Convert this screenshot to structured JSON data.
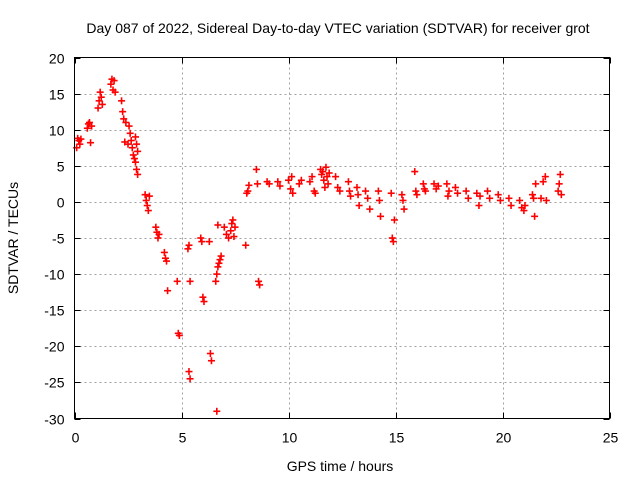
{
  "chart_data": {
    "type": "scatter",
    "title": "Day 087 of 2022, Sidereal Day-to-day VTEC variation (SDTVAR) for receiver grot",
    "xlabel": "GPS time / hours",
    "ylabel": "SDTVAR / TECUs",
    "xlim": [
      0,
      25
    ],
    "ylim": [
      -30,
      20
    ],
    "x_ticks": [
      0,
      5,
      10,
      15,
      20,
      25
    ],
    "y_ticks": [
      -30,
      -25,
      -20,
      -15,
      -10,
      -5,
      0,
      5,
      10,
      15,
      20
    ],
    "grid": true,
    "marker": "plus",
    "marker_color": "#ff0000",
    "series": [
      {
        "name": "SDTVAR",
        "points": [
          [
            0.1,
            7.5
          ],
          [
            0.15,
            8.8
          ],
          [
            0.2,
            8.5
          ],
          [
            0.25,
            8.0
          ],
          [
            0.3,
            8.7
          ],
          [
            0.6,
            10.2
          ],
          [
            0.65,
            10.8
          ],
          [
            0.7,
            11.0
          ],
          [
            0.75,
            8.2
          ],
          [
            0.8,
            10.5
          ],
          [
            1.1,
            13.0
          ],
          [
            1.15,
            14.0
          ],
          [
            1.2,
            15.2
          ],
          [
            1.25,
            14.5
          ],
          [
            1.3,
            13.5
          ],
          [
            1.7,
            16.3
          ],
          [
            1.75,
            17.0
          ],
          [
            1.8,
            15.5
          ],
          [
            1.85,
            16.8
          ],
          [
            1.9,
            15.2
          ],
          [
            2.2,
            14.0
          ],
          [
            2.25,
            12.5
          ],
          [
            2.3,
            11.5
          ],
          [
            2.35,
            8.3
          ],
          [
            2.4,
            11.0
          ],
          [
            2.5,
            8.0
          ],
          [
            2.55,
            10.5
          ],
          [
            2.6,
            9.5
          ],
          [
            2.65,
            8.5
          ],
          [
            2.7,
            7.5
          ],
          [
            2.75,
            6.5
          ],
          [
            2.8,
            6.0
          ],
          [
            2.85,
            5.5
          ],
          [
            2.9,
            4.5
          ],
          [
            2.95,
            3.8
          ],
          [
            2.85,
            9.0
          ],
          [
            2.9,
            8.0
          ],
          [
            2.95,
            7.0
          ],
          [
            3.3,
            1.0
          ],
          [
            3.35,
            0.2
          ],
          [
            3.4,
            -0.5
          ],
          [
            3.45,
            -1.2
          ],
          [
            3.5,
            0.8
          ],
          [
            3.8,
            -3.5
          ],
          [
            3.85,
            -4.2
          ],
          [
            3.9,
            -5.0
          ],
          [
            3.95,
            -4.5
          ],
          [
            4.2,
            -7.0
          ],
          [
            4.25,
            -7.8
          ],
          [
            4.3,
            -8.2
          ],
          [
            4.35,
            -12.3
          ],
          [
            4.8,
            -11.0
          ],
          [
            4.85,
            -18.2
          ],
          [
            4.9,
            -18.5
          ],
          [
            5.3,
            -6.5
          ],
          [
            5.35,
            -6.0
          ],
          [
            5.4,
            -11.0
          ],
          [
            5.35,
            -23.5
          ],
          [
            5.4,
            -24.5
          ],
          [
            5.9,
            -5.0
          ],
          [
            5.95,
            -5.5
          ],
          [
            6.0,
            -13.2
          ],
          [
            6.05,
            -13.8
          ],
          [
            6.3,
            -5.5
          ],
          [
            6.35,
            -21.0
          ],
          [
            6.4,
            -22.0
          ],
          [
            6.65,
            -29.0
          ],
          [
            6.7,
            -3.2
          ],
          [
            6.6,
            -11.0
          ],
          [
            6.65,
            -10.0
          ],
          [
            6.7,
            -9.0
          ],
          [
            6.75,
            -8.5
          ],
          [
            6.8,
            -8.0
          ],
          [
            6.85,
            -7.5
          ],
          [
            7.0,
            -3.5
          ],
          [
            7.1,
            -4.5
          ],
          [
            7.2,
            -5.0
          ],
          [
            7.3,
            -4.0
          ],
          [
            7.35,
            -3.0
          ],
          [
            7.4,
            -2.5
          ],
          [
            7.45,
            -4.8
          ],
          [
            7.5,
            -3.5
          ],
          [
            8.0,
            -6.0
          ],
          [
            8.05,
            1.2
          ],
          [
            8.1,
            1.5
          ],
          [
            8.15,
            2.3
          ],
          [
            8.5,
            4.5
          ],
          [
            8.55,
            2.5
          ],
          [
            8.6,
            -11.0
          ],
          [
            8.65,
            -11.5
          ],
          [
            9.0,
            2.8
          ],
          [
            9.1,
            2.5
          ],
          [
            9.5,
            2.8
          ],
          [
            9.6,
            2.2
          ],
          [
            10.0,
            3.0
          ],
          [
            10.1,
            1.8
          ],
          [
            10.2,
            1.2
          ],
          [
            10.15,
            3.5
          ],
          [
            10.5,
            2.5
          ],
          [
            10.6,
            3.0
          ],
          [
            11.0,
            2.8
          ],
          [
            11.1,
            3.5
          ],
          [
            11.2,
            1.5
          ],
          [
            11.25,
            1.2
          ],
          [
            11.5,
            4.5
          ],
          [
            11.55,
            3.8
          ],
          [
            11.6,
            4.2
          ],
          [
            11.65,
            3.0
          ],
          [
            11.7,
            2.0
          ],
          [
            11.75,
            4.8
          ],
          [
            11.8,
            3.5
          ],
          [
            11.85,
            2.5
          ],
          [
            11.9,
            4.0
          ],
          [
            12.2,
            3.5
          ],
          [
            12.3,
            2.0
          ],
          [
            12.4,
            1.5
          ],
          [
            12.8,
            2.8
          ],
          [
            12.85,
            1.5
          ],
          [
            12.9,
            0.8
          ],
          [
            13.2,
            2.0
          ],
          [
            13.25,
            1.0
          ],
          [
            13.3,
            -0.5
          ],
          [
            13.6,
            1.5
          ],
          [
            13.7,
            0.5
          ],
          [
            13.8,
            -1.0
          ],
          [
            14.2,
            1.5
          ],
          [
            14.25,
            0.2
          ],
          [
            14.3,
            -2.0
          ],
          [
            14.8,
            1.2
          ],
          [
            14.85,
            -5.0
          ],
          [
            14.9,
            -5.5
          ],
          [
            14.95,
            -2.5
          ],
          [
            15.3,
            1.0
          ],
          [
            15.35,
            0.2
          ],
          [
            15.4,
            -1.0
          ],
          [
            15.9,
            4.2
          ],
          [
            15.95,
            1.5
          ],
          [
            16.0,
            1.0
          ],
          [
            16.3,
            2.5
          ],
          [
            16.35,
            1.8
          ],
          [
            16.4,
            1.5
          ],
          [
            16.8,
            2.5
          ],
          [
            16.9,
            1.8
          ],
          [
            17.0,
            2.2
          ],
          [
            17.4,
            2.5
          ],
          [
            17.5,
            1.5
          ],
          [
            17.45,
            0.8
          ],
          [
            17.8,
            2.0
          ],
          [
            17.9,
            1.2
          ],
          [
            18.3,
            1.5
          ],
          [
            18.4,
            0.5
          ],
          [
            18.8,
            1.2
          ],
          [
            18.9,
            -0.5
          ],
          [
            18.95,
            0.8
          ],
          [
            19.3,
            1.5
          ],
          [
            19.4,
            0.5
          ],
          [
            19.8,
            1.0
          ],
          [
            19.9,
            0.2
          ],
          [
            20.3,
            0.5
          ],
          [
            20.4,
            -0.5
          ],
          [
            20.8,
            0.2
          ],
          [
            20.9,
            -0.8
          ],
          [
            21.0,
            -1.2
          ],
          [
            21.05,
            -0.5
          ],
          [
            21.4,
            1.0
          ],
          [
            21.45,
            0.5
          ],
          [
            21.5,
            -2.0
          ],
          [
            21.55,
            2.5
          ],
          [
            21.8,
            0.5
          ],
          [
            21.9,
            2.8
          ],
          [
            22.0,
            3.5
          ],
          [
            22.05,
            0.2
          ],
          [
            22.6,
            1.5
          ],
          [
            22.65,
            2.5
          ],
          [
            22.7,
            3.8
          ],
          [
            22.75,
            1.0
          ]
        ]
      }
    ]
  }
}
